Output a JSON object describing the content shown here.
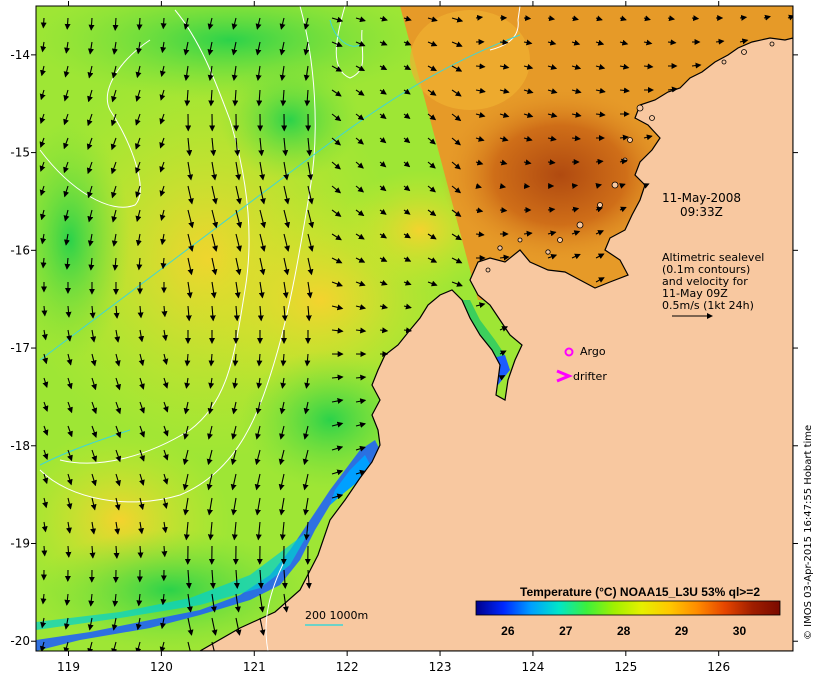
{
  "map": {
    "x_ticks": [
      "119",
      "120",
      "121",
      "122",
      "123",
      "124",
      "125",
      "126"
    ],
    "y_ticks": [
      "-14",
      "-15",
      "-16",
      "-17",
      "-18",
      "-19",
      "-20"
    ],
    "lon_range": [
      118.65,
      126.8
    ],
    "lat_range": [
      -20.1,
      -13.5
    ],
    "colors": {
      "land": "#f8c8a0",
      "coast": "#000000",
      "contour_white": "#ffffff",
      "contour_cyan": "#3fd6d6",
      "argo": "#ff00ff",
      "drifter": "#ff00ff"
    }
  },
  "annotation": {
    "date": "11-May-2008",
    "time": "09:33Z",
    "legend_lines": [
      "Altimetric sealevel",
      "(0.1m contours)",
      "and velocity for",
      "11-May 09Z",
      "0.5m/s (1kt 24h)"
    ],
    "argo_label": "Argo",
    "drifter_label": "drifter",
    "bathy_label": "200  1000m"
  },
  "colorbar": {
    "title": "Temperature (°C) NOAA15_L3U 53% ql>=2",
    "ticks": [
      "26",
      "27",
      "28",
      "29",
      "30"
    ],
    "range": [
      25.45,
      30.7
    ],
    "stops": [
      "#00008c",
      "#0028ff",
      "#00a0ff",
      "#00e6c8",
      "#3cf03c",
      "#a0f000",
      "#e6f000",
      "#ffc800",
      "#ff8c00",
      "#e64600",
      "#a01e00",
      "#7a0a00"
    ]
  },
  "credit": "© IMOS 03-Apr-2015 16:47:55 Hobart time"
}
